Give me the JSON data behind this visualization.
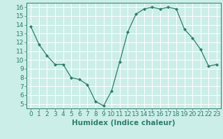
{
  "x": [
    0,
    1,
    2,
    3,
    4,
    5,
    6,
    7,
    8,
    9,
    10,
    11,
    12,
    13,
    14,
    15,
    16,
    17,
    18,
    19,
    20,
    21,
    22,
    23
  ],
  "y": [
    13.8,
    11.8,
    10.5,
    9.5,
    9.5,
    8.0,
    7.8,
    7.2,
    5.3,
    4.8,
    6.5,
    9.8,
    13.2,
    15.2,
    15.8,
    16.0,
    15.8,
    16.0,
    15.8,
    13.5,
    12.5,
    11.2,
    9.3,
    9.5
  ],
  "xlabel": "Humidex (Indice chaleur)",
  "line_color": "#2e7d6e",
  "marker": "D",
  "marker_size": 2.0,
  "bg_color": "#cceee8",
  "grid_color": "#ffffff",
  "ylim": [
    4.5,
    16.5
  ],
  "xlim": [
    -0.5,
    23.5
  ],
  "yticks": [
    5,
    6,
    7,
    8,
    9,
    10,
    11,
    12,
    13,
    14,
    15,
    16
  ],
  "xticks": [
    0,
    1,
    2,
    3,
    4,
    5,
    6,
    7,
    8,
    9,
    10,
    11,
    12,
    13,
    14,
    15,
    16,
    17,
    18,
    19,
    20,
    21,
    22,
    23
  ],
  "tick_label_fontsize": 6.5,
  "xlabel_fontsize": 7.5
}
